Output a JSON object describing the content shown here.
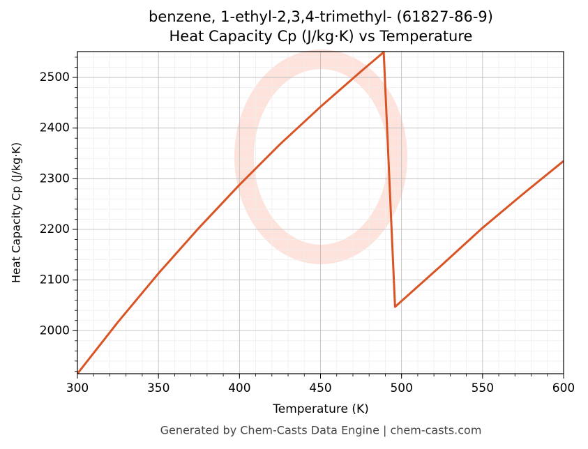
{
  "chart_data": {
    "type": "line",
    "title": "benzene, 1-ethyl-2,3,4-trimethyl- (61827-86-9)",
    "subtitle": "Heat Capacity Cp (J/kg·K) vs Temperature",
    "x_label": "Temperature (K)",
    "y_label": "Heat Capacity Cp (J/kg·K)",
    "footer": "Generated by Chem-Casts Data Engine | chem-casts.com",
    "x": [
      300,
      325,
      350,
      375,
      400,
      425,
      450,
      475,
      489,
      496,
      525,
      550,
      575,
      600
    ],
    "series": [
      {
        "name": "Cp",
        "color": "#d95424",
        "values": [
          1915,
          2017,
          2113,
          2203,
          2288,
          2368,
          2442,
          2512,
          2550,
          2047,
          2130,
          2203,
          2270,
          2335
        ]
      }
    ],
    "xlim": [
      300,
      600
    ],
    "xticks": [
      300,
      350,
      400,
      450,
      500,
      550,
      600
    ],
    "ylim": [
      1915,
      2551
    ],
    "yticks": [
      2000,
      2100,
      2200,
      2300,
      2400,
      2500
    ],
    "grid": true,
    "minor_grid": true
  }
}
